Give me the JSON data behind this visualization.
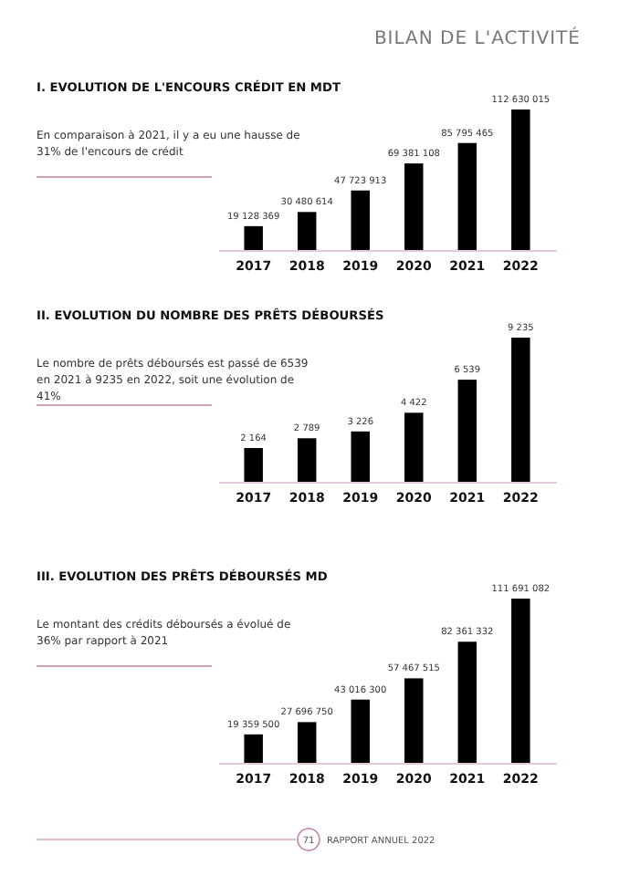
{
  "chart_data": [
    {
      "type": "bar",
      "title": "I.     EVOLUTION DE L'ENCOURS CRÉDIT EN MDT",
      "categories": [
        "2017",
        "2018",
        "2019",
        "2020",
        "2021",
        "2022"
      ],
      "values": [
        19128369,
        30480614,
        47723913,
        69381108,
        85795465,
        112630015
      ],
      "value_labels": [
        "19 128 369",
        "30 480 614",
        "47 723 913",
        "69 381 108",
        "85 795 465",
        "112 630 015"
      ],
      "color": "#000000",
      "annotations": [
        "En comparaison à 2021, il y a eu une hausse de 31% de l'encours de crédit",
        "BILAN DE L'ACTIVITÉ"
      ]
    },
    {
      "type": "bar",
      "title": "II.     EVOLUTION DU NOMBRE DES PRÊTS DÉBOURSÉS",
      "categories": [
        "2017",
        "2018",
        "2019",
        "2020",
        "2021",
        "2022"
      ],
      "values": [
        2164,
        2789,
        3226,
        4422,
        6539,
        9235
      ],
      "value_labels": [
        "2 164",
        "2 789",
        "3 226",
        "4 422",
        "6 539",
        "9 235"
      ],
      "color": "#000000",
      "annotations": [
        "Le nombre de prêts déboursés est passé de 6539 en 2021 à 9235 en 2022, soit une évolution de 41%"
      ]
    },
    {
      "type": "bar",
      "title": "III.     EVOLUTION DES PRÊTS DÉBOURSÉS MD",
      "categories": [
        "2017",
        "2018",
        "2019",
        "2020",
        "2021",
        "2022"
      ],
      "values": [
        19359500,
        27696750,
        43016300,
        57467515,
        82361332,
        111691082
      ],
      "value_labels": [
        "19 359 500",
        "27 696 750",
        "43 016 300",
        "57 467 515",
        "82 361 332",
        "111 691 082"
      ],
      "color": "#000000",
      "annotations": [
        "Le montant des crédits déboursés a évolué de 36% par rapport à 2021",
        "71",
        "RAPPORT ANNUEL 2022"
      ]
    }
  ]
}
